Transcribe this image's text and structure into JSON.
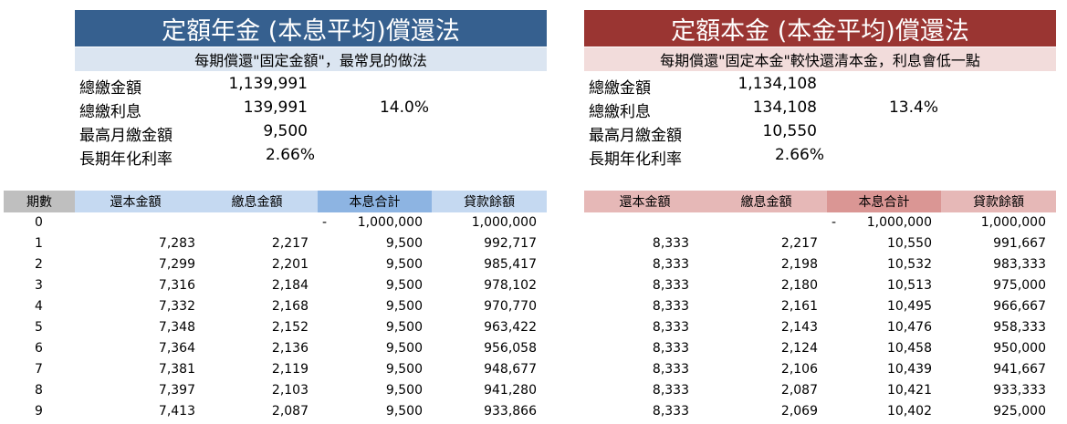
{
  "left": {
    "title": "定額年金 (本息平均)償還法",
    "subtitle": "每期償還\"固定金額\"，最常見的做法",
    "summary": [
      {
        "label": "總繳金額",
        "value": "1,139,991",
        "pct": ""
      },
      {
        "label": "總繳利息",
        "value": "139,991",
        "pct": "14.0%"
      },
      {
        "label": "最高月繳金額",
        "value": "9,500",
        "pct": ""
      },
      {
        "label": "長期年化利率",
        "value": "2.66%",
        "pct": ""
      }
    ],
    "headers": {
      "period": "期數",
      "principal": "還本金額",
      "interest": "繳息金額",
      "total": "本息合計",
      "balance": "貸款餘額"
    },
    "rows": [
      {
        "period": "0",
        "principal": "",
        "interest": "",
        "total_dash": "-",
        "total": "1,000,000",
        "balance": "1,000,000"
      },
      {
        "period": "1",
        "principal": "7,283",
        "interest": "2,217",
        "total_dash": "",
        "total": "9,500",
        "balance": "992,717"
      },
      {
        "period": "2",
        "principal": "7,299",
        "interest": "2,201",
        "total_dash": "",
        "total": "9,500",
        "balance": "985,417"
      },
      {
        "period": "3",
        "principal": "7,316",
        "interest": "2,184",
        "total_dash": "",
        "total": "9,500",
        "balance": "978,102"
      },
      {
        "period": "4",
        "principal": "7,332",
        "interest": "2,168",
        "total_dash": "",
        "total": "9,500",
        "balance": "970,770"
      },
      {
        "period": "5",
        "principal": "7,348",
        "interest": "2,152",
        "total_dash": "",
        "total": "9,500",
        "balance": "963,422"
      },
      {
        "period": "6",
        "principal": "7,364",
        "interest": "2,136",
        "total_dash": "",
        "total": "9,500",
        "balance": "956,058"
      },
      {
        "period": "7",
        "principal": "7,381",
        "interest": "2,119",
        "total_dash": "",
        "total": "9,500",
        "balance": "948,677"
      },
      {
        "period": "8",
        "principal": "7,397",
        "interest": "2,103",
        "total_dash": "",
        "total": "9,500",
        "balance": "941,280"
      },
      {
        "period": "9",
        "principal": "7,413",
        "interest": "2,087",
        "total_dash": "",
        "total": "9,500",
        "balance": "933,866"
      }
    ]
  },
  "right": {
    "title": "定額本金 (本金平均)償還法",
    "subtitle": "每期償還\"固定本金\"較快還清本金，利息會低一點",
    "summary": [
      {
        "label": "總繳金額",
        "value": "1,134,108",
        "pct": ""
      },
      {
        "label": "總繳利息",
        "value": "134,108",
        "pct": "13.4%"
      },
      {
        "label": "最高月繳金額",
        "value": "10,550",
        "pct": ""
      },
      {
        "label": "長期年化利率",
        "value": "2.66%",
        "pct": ""
      }
    ],
    "headers": {
      "principal": "還本金額",
      "interest": "繳息金額",
      "total": "本息合計",
      "balance": "貸款餘額"
    },
    "rows": [
      {
        "principal": "",
        "interest": "",
        "total_dash": "-",
        "total": "1,000,000",
        "balance": "1,000,000"
      },
      {
        "principal": "8,333",
        "interest": "2,217",
        "total_dash": "",
        "total": "10,550",
        "balance": "991,667"
      },
      {
        "principal": "8,333",
        "interest": "2,198",
        "total_dash": "",
        "total": "10,532",
        "balance": "983,333"
      },
      {
        "principal": "8,333",
        "interest": "2,180",
        "total_dash": "",
        "total": "10,513",
        "balance": "975,000"
      },
      {
        "principal": "8,333",
        "interest": "2,161",
        "total_dash": "",
        "total": "10,495",
        "balance": "966,667"
      },
      {
        "principal": "8,333",
        "interest": "2,143",
        "total_dash": "",
        "total": "10,476",
        "balance": "958,333"
      },
      {
        "principal": "8,333",
        "interest": "2,124",
        "total_dash": "",
        "total": "10,458",
        "balance": "950,000"
      },
      {
        "principal": "8,333",
        "interest": "2,106",
        "total_dash": "",
        "total": "10,439",
        "balance": "941,667"
      },
      {
        "principal": "8,333",
        "interest": "2,087",
        "total_dash": "",
        "total": "10,421",
        "balance": "933,333"
      },
      {
        "principal": "8,333",
        "interest": "2,069",
        "total_dash": "",
        "total": "10,402",
        "balance": "925,000"
      }
    ]
  },
  "colors": {
    "left_title_bg": "#36608f",
    "left_subtitle_bg": "#dbe5f1",
    "left_header_bg": "#c5d9f1",
    "left_header_accent_bg": "#8db4e2",
    "period_header_bg": "#bfbfbf",
    "right_title_bg": "#9a3532",
    "right_subtitle_bg": "#f2dcdb",
    "right_header_bg": "#e6b8b7",
    "right_header_accent_bg": "#da9694"
  }
}
